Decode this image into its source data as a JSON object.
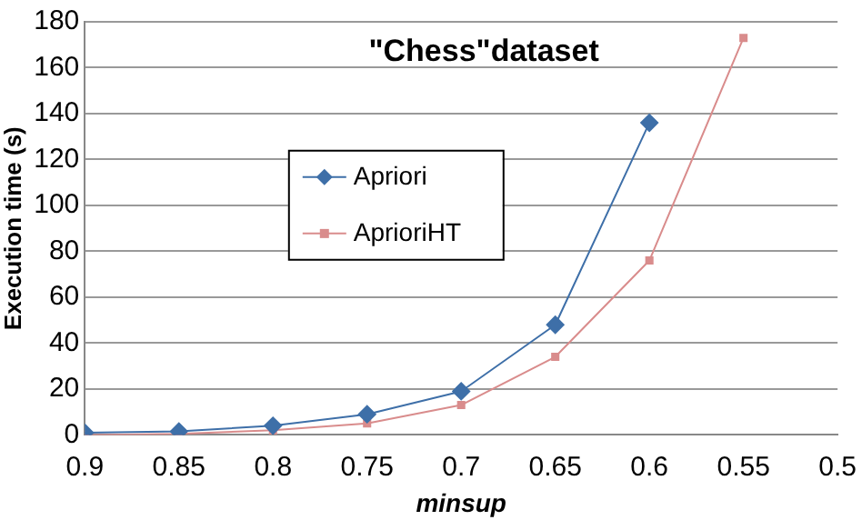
{
  "chart_data": {
    "type": "line",
    "title": "\"Chess\"dataset",
    "xlabel": "minsup",
    "ylabel": "Execution time (s)",
    "xlim": [
      0.9,
      0.5
    ],
    "xticks": [
      0.9,
      0.85,
      0.8,
      0.75,
      0.7,
      0.65,
      0.6,
      0.55,
      0.5
    ],
    "ylim": [
      0,
      180
    ],
    "yticks": [
      0,
      20,
      40,
      60,
      80,
      100,
      120,
      140,
      160,
      180
    ],
    "grid": "y",
    "legend": "left",
    "series": [
      {
        "name": "Apriori",
        "color": "#3e6fa8",
        "marker": "diamond",
        "x": [
          0.9,
          0.85,
          0.8,
          0.75,
          0.7,
          0.65,
          0.6
        ],
        "values": [
          1,
          1.5,
          4,
          9,
          19,
          48,
          136
        ]
      },
      {
        "name": "AprioriHT",
        "color": "#d98c8c",
        "marker": "square",
        "x": [
          0.9,
          0.85,
          0.8,
          0.75,
          0.7,
          0.65,
          0.6,
          0.55
        ],
        "values": [
          0,
          0.5,
          2,
          5,
          13,
          34,
          76,
          173
        ]
      }
    ]
  }
}
